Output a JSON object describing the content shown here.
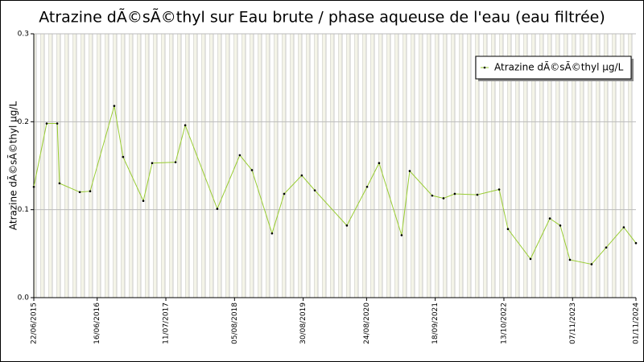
{
  "chart_data": {
    "type": "line",
    "title": "Atrazine dÃ©sÃ©thyl sur Eau brute / phase aqueuse de l'eau (eau filtrée)",
    "y_label": "Atrazine dÃ©sÃ©thyl µg/L",
    "x": [
      "2015-06-22",
      "2015-09-03",
      "2015-11-02",
      "2015-11-15",
      "2016-03-09",
      "2016-05-07",
      "2016-09-21",
      "2016-11-10",
      "2017-03-05",
      "2017-04-24",
      "2017-09-04",
      "2017-10-29",
      "2018-04-29",
      "2018-09-04",
      "2018-11-12",
      "2019-03-06",
      "2019-05-14",
      "2019-08-22",
      "2019-11-04",
      "2020-05-04",
      "2020-08-27",
      "2020-11-03",
      "2021-03-11",
      "2021-04-26",
      "2021-09-01",
      "2021-11-04",
      "2022-01-07",
      "2022-05-15",
      "2022-09-16",
      "2022-11-05",
      "2023-03-13",
      "2023-07-01",
      "2023-08-29",
      "2023-10-23",
      "2024-02-23",
      "2024-05-16",
      "2024-08-24",
      "2024-11-01"
    ],
    "series": [
      {
        "name": "Atrazine dÃ©sÃ©thyl µg/L",
        "color": "#99cc33",
        "marker_color": "#000000",
        "values": [
          0.126,
          0.198,
          0.198,
          0.13,
          0.12,
          0.121,
          0.218,
          0.16,
          0.11,
          0.153,
          0.154,
          0.196,
          0.101,
          0.162,
          0.145,
          0.073,
          0.118,
          0.139,
          0.122,
          0.082,
          0.126,
          0.153,
          0.071,
          0.144,
          0.116,
          0.113,
          0.118,
          0.117,
          0.123,
          0.078,
          0.044,
          0.09,
          0.082,
          0.043,
          0.038,
          0.057,
          0.08,
          0.062
        ]
      }
    ],
    "xlim": [
      "2015-06-22",
      "2024-11-01"
    ],
    "xticks": [
      {
        "value": "2015-06-22",
        "label": "22/06/2015"
      },
      {
        "value": "2016-06-16",
        "label": "16/06/2016"
      },
      {
        "value": "2017-07-11",
        "label": "11/07/2017"
      },
      {
        "value": "2018-08-05",
        "label": "05/08/2018"
      },
      {
        "value": "2019-08-30",
        "label": "30/08/2019"
      },
      {
        "value": "2020-08-24",
        "label": "24/08/2020"
      },
      {
        "value": "2021-09-18",
        "label": "18/09/2021"
      },
      {
        "value": "2022-10-13",
        "label": "13/10/2022"
      },
      {
        "value": "2023-11-07",
        "label": "07/11/2023"
      },
      {
        "value": "2024-11-01",
        "label": "01/11/2024"
      }
    ],
    "ylim": [
      0,
      0.3
    ],
    "yticks": [
      {
        "value": 0,
        "label": "0.0"
      },
      0.1,
      0.2,
      0.3
    ],
    "grid": true,
    "legend": "upper right"
  }
}
